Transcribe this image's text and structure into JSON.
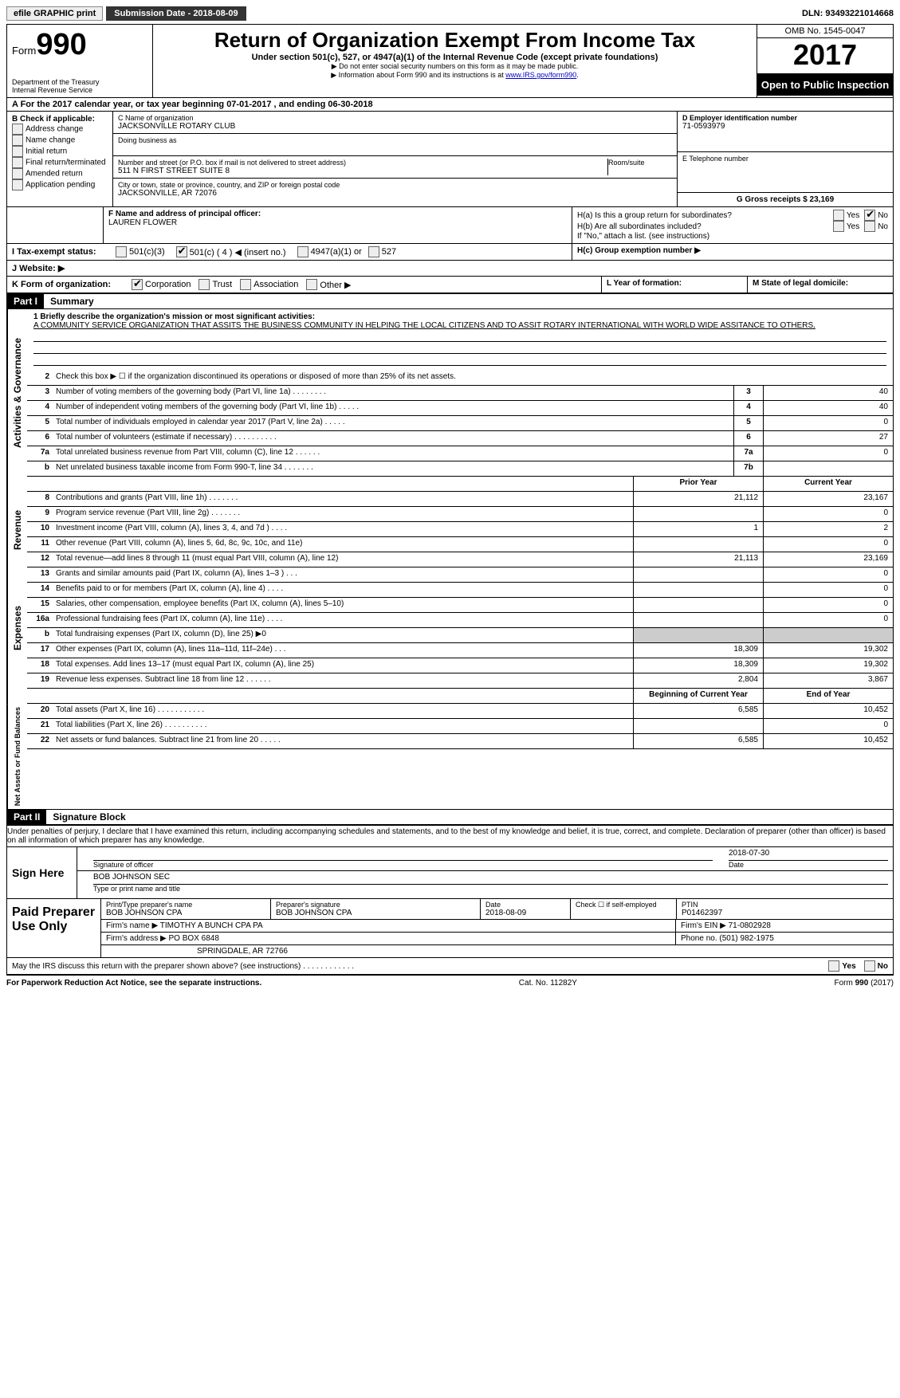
{
  "topbar": {
    "efile": "efile GRAPHIC print",
    "submission_label": "Submission Date - 2018-08-09",
    "dln_label": "DLN: 93493221014668"
  },
  "header": {
    "form_label": "Form",
    "form_no": "990",
    "dept": "Department of the Treasury",
    "irs": "Internal Revenue Service",
    "title": "Return of Organization Exempt From Income Tax",
    "subtitle": "Under section 501(c), 527, or 4947(a)(1) of the Internal Revenue Code (except private foundations)",
    "note1": "▶ Do not enter social security numbers on this form as it may be made public.",
    "note2_pre": "▶ Information about Form 990 and its instructions is at ",
    "note2_link": "www.IRS.gov/form990",
    "note2_post": ".",
    "omb": "OMB No. 1545-0047",
    "year": "2017",
    "open": "Open to Public Inspection"
  },
  "rowA": "A   For the 2017 calendar year, or tax year beginning 07-01-2017     , and ending 06-30-2018",
  "boxB": {
    "label": "B Check if applicable:",
    "items": [
      "Address change",
      "Name change",
      "Initial return",
      "Final return/terminated",
      "Amended return",
      "Application pending"
    ]
  },
  "boxC": {
    "name_lbl": "C Name of organization",
    "name": "JACKSONVILLE ROTARY CLUB",
    "dba_lbl": "Doing business as",
    "street_lbl": "Number and street (or P.O. box if mail is not delivered to street address)",
    "room_lbl": "Room/suite",
    "street": "511 N FIRST STREET SUITE 8",
    "city_lbl": "City or town, state or province, country, and ZIP or foreign postal code",
    "city": "JACKSONVILLE, AR  72076"
  },
  "boxD": {
    "lbl": "D Employer identification number",
    "val": "71-0593979"
  },
  "boxE": {
    "lbl": "E Telephone number",
    "val": ""
  },
  "boxG": {
    "lbl": "G Gross receipts $ 23,169"
  },
  "boxF": {
    "lbl": "F  Name and address of principal officer:",
    "name": "LAUREN FLOWER"
  },
  "boxH": {
    "a": "H(a)   Is this a group return for subordinates?",
    "b": "H(b)   Are all subordinates included?",
    "b2": "If \"No,\" attach a list. (see instructions)",
    "c": "H(c)   Group exemption number ▶"
  },
  "rowI": {
    "lbl": "I    Tax-exempt status:",
    "c3": "501(c)(3)",
    "c": "501(c) ( 4 ) ◀ (insert no.)",
    "a": "4947(a)(1) or",
    "s": "527"
  },
  "rowJ": "J   Website: ▶",
  "rowK": {
    "lbl": "K Form of organization:",
    "corp": "Corporation",
    "trust": "Trust",
    "assoc": "Association",
    "other": "Other ▶"
  },
  "rowL": "L Year of formation:",
  "rowM": "M State of legal domicile:",
  "part1": {
    "no": "Part I",
    "title": "Summary"
  },
  "mission": {
    "q": "1   Briefly describe the organization's mission or most significant activities:",
    "txt": "A COMMUNITY SERVICE ORGANIZATION THAT ASSITS THE BUSINESS COMMUNITY IN HELPING THE LOCAL CITIZENS AND TO ASSIT ROTARY INTERNATIONAL WITH WORLD WIDE ASSITANCE TO OTHERS."
  },
  "gov_lines": [
    {
      "n": "2",
      "t": "Check this box ▶ ☐  if the organization discontinued its operations or disposed of more than 25% of its net assets."
    },
    {
      "n": "3",
      "t": "Number of voting members of the governing body (Part VI, line 1a)  .    .    .    .    .    .    .    .",
      "box": "3",
      "v": "40"
    },
    {
      "n": "4",
      "t": "Number of independent voting members of the governing body (Part VI, line 1b)   .    .    .    .    .",
      "box": "4",
      "v": "40"
    },
    {
      "n": "5",
      "t": "Total number of individuals employed in calendar year 2017 (Part V, line 2a)    .    .    .    .    .",
      "box": "5",
      "v": "0"
    },
    {
      "n": "6",
      "t": "Total number of volunteers (estimate if necessary)   .    .    .    .    .    .    .    .    .    .",
      "box": "6",
      "v": "27"
    },
    {
      "n": "7a",
      "t": "Total unrelated business revenue from Part VIII, column (C), line 12    .    .    .    .    .    .",
      "box": "7a",
      "v": "0"
    },
    {
      "n": "b",
      "t": "Net unrelated business taxable income from Form 990-T, line 34  .    .    .    .    .    .    .",
      "box": "7b",
      "v": ""
    }
  ],
  "col_hdr": {
    "prior": "Prior Year",
    "current": "Current Year"
  },
  "rev_lines": [
    {
      "n": "8",
      "t": "Contributions and grants (Part VIII, line 1h)   .    .    .    .    .    .    .",
      "p": "21,112",
      "c": "23,167"
    },
    {
      "n": "9",
      "t": "Program service revenue (Part VIII, line 2g)   .    .    .    .    .    .    .",
      "p": "",
      "c": "0"
    },
    {
      "n": "10",
      "t": "Investment income (Part VIII, column (A), lines 3, 4, and 7d )   .    .    .    .",
      "p": "1",
      "c": "2"
    },
    {
      "n": "11",
      "t": "Other revenue (Part VIII, column (A), lines 5, 6d, 8c, 9c, 10c, and 11e)",
      "p": "",
      "c": "0"
    },
    {
      "n": "12",
      "t": "Total revenue—add lines 8 through 11 (must equal Part VIII, column (A), line 12)",
      "p": "21,113",
      "c": "23,169"
    }
  ],
  "exp_lines": [
    {
      "n": "13",
      "t": "Grants and similar amounts paid (Part IX, column (A), lines 1–3 )   .    .    .",
      "p": "",
      "c": "0"
    },
    {
      "n": "14",
      "t": "Benefits paid to or for members (Part IX, column (A), line 4)   .    .    .    .",
      "p": "",
      "c": "0"
    },
    {
      "n": "15",
      "t": "Salaries, other compensation, employee benefits (Part IX, column (A), lines 5–10)",
      "p": "",
      "c": "0"
    },
    {
      "n": "16a",
      "t": "Professional fundraising fees (Part IX, column (A), line 11e)   .    .    .    .",
      "p": "",
      "c": "0"
    },
    {
      "n": "b",
      "t": "Total fundraising expenses (Part IX, column (D), line 25) ▶0",
      "p": "shade",
      "c": "shade"
    },
    {
      "n": "17",
      "t": "Other expenses (Part IX, column (A), lines 11a–11d, 11f–24e)    .    .    .",
      "p": "18,309",
      "c": "19,302"
    },
    {
      "n": "18",
      "t": "Total expenses. Add lines 13–17 (must equal Part IX, column (A), line 25)",
      "p": "18,309",
      "c": "19,302"
    },
    {
      "n": "19",
      "t": "Revenue less expenses. Subtract line 18 from line 12   .    .    .    .    .    .",
      "p": "2,804",
      "c": "3,867"
    }
  ],
  "na_hdr": {
    "beg": "Beginning of Current Year",
    "end": "End of Year"
  },
  "na_lines": [
    {
      "n": "20",
      "t": "Total assets (Part X, line 16)  .    .    .    .    .    .    .    .    .    .    .",
      "p": "6,585",
      "c": "10,452"
    },
    {
      "n": "21",
      "t": "Total liabilities (Part X, line 26)  .    .    .    .    .    .    .    .    .    .",
      "p": "",
      "c": "0"
    },
    {
      "n": "22",
      "t": "Net assets or fund balances. Subtract line 21 from line 20    .    .    .    .    .",
      "p": "6,585",
      "c": "10,452"
    }
  ],
  "side": {
    "gov": "Activities & Governance",
    "rev": "Revenue",
    "exp": "Expenses",
    "na": "Net Assets or Fund Balances"
  },
  "part2": {
    "no": "Part II",
    "title": "Signature Block"
  },
  "penalty": "Under penalties of perjury, I declare that I have examined this return, including accompanying schedules and statements, and to the best of my knowledge and belief, it is true, correct, and complete. Declaration of preparer (other than officer) is based on all information of which preparer has any knowledge.",
  "sign": {
    "here": "Sign Here",
    "sig_lbl": "Signature of officer",
    "date": "2018-07-30",
    "date_lbl": "Date",
    "name": "BOB JOHNSON SEC",
    "name_lbl": "Type or print name and title"
  },
  "prep": {
    "title": "Paid Preparer Use Only",
    "h_name": "Print/Type preparer's name",
    "h_sig": "Preparer's signature",
    "h_date": "Date",
    "h_se": "Check ☐ if self-employed",
    "h_ptin": "PTIN",
    "name": "BOB JOHNSON CPA",
    "sig": "BOB JOHNSON CPA",
    "date": "2018-08-09",
    "ptin": "P01462397",
    "firm_lbl": "Firm's name      ▶",
    "firm": "TIMOTHY A BUNCH CPA PA",
    "ein_lbl": "Firm's EIN ▶",
    "ein": "71-0802928",
    "addr_lbl": "Firm's address ▶",
    "addr1": "PO BOX 6848",
    "addr2": "SPRINGDALE, AR  72766",
    "phone_lbl": "Phone no.",
    "phone": "(501) 982-1975"
  },
  "discuss": "May the IRS discuss this return with the preparer shown above? (see instructions)    .    .    .    .    .    .    .    .    .    .    .    .",
  "footer": {
    "pra": "For Paperwork Reduction Act Notice, see the separate instructions.",
    "cat": "Cat. No. 11282Y",
    "form": "Form 990 (2017)"
  },
  "yesno": {
    "yes": "Yes",
    "no": "No"
  }
}
